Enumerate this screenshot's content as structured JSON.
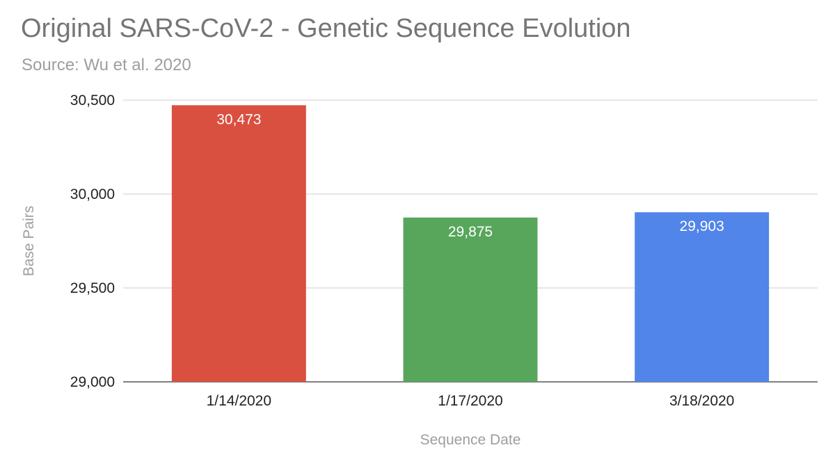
{
  "chart_data": {
    "type": "bar",
    "title": "Original SARS-CoV-2 - Genetic Sequence Evolution",
    "subtitle": "Source: Wu et al. 2020",
    "xlabel": "Sequence Date",
    "ylabel": "Base Pairs",
    "categories": [
      "1/14/2020",
      "1/17/2020",
      "3/18/2020"
    ],
    "values": [
      30473,
      29875,
      29903
    ],
    "data_labels": [
      "30,473",
      "29,875",
      "29,903"
    ],
    "bar_colors": [
      "#d95040",
      "#58a65c",
      "#5185ea"
    ],
    "ylim": [
      29000,
      30500
    ],
    "yticks": [
      29000,
      29500,
      30000,
      30500
    ],
    "ytick_labels": [
      "29,000",
      "29,500",
      "30,000",
      "30,500"
    ],
    "grid": true,
    "legend": "none"
  }
}
